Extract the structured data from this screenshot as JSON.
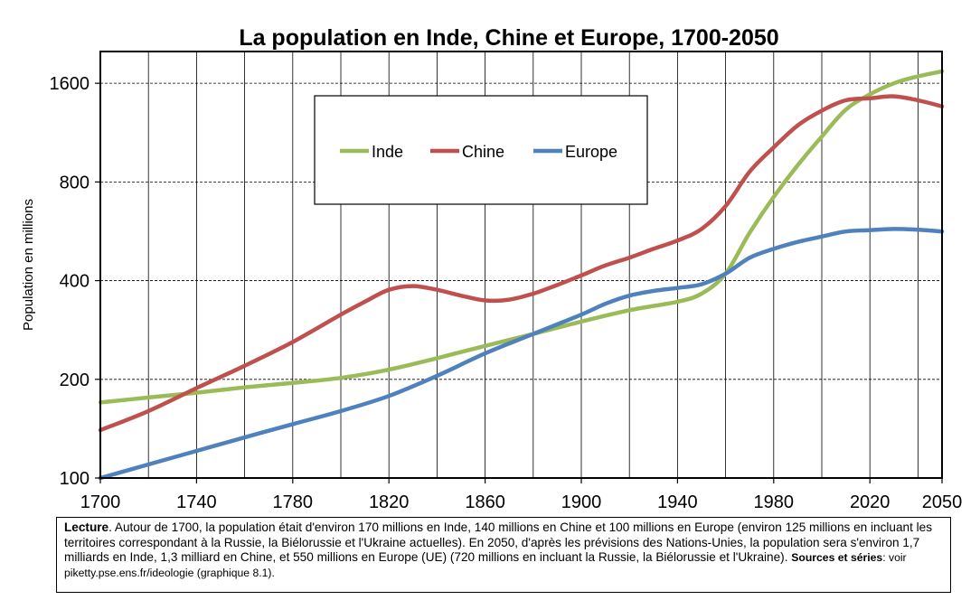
{
  "chart_data": {
    "type": "line",
    "title": "La population en Inde, Chine et Europe, 1700-2050",
    "ylabel": "Population en millions",
    "xlabel": "",
    "xlim": [
      1700,
      2050
    ],
    "ylim": [
      100,
      2000
    ],
    "yscale": "log",
    "xticks": [
      "1700",
      "1740",
      "1780",
      "1820",
      "1860",
      "1900",
      "1940",
      "1980",
      "2020",
      "2050"
    ],
    "yticks": [
      "100",
      "200",
      "400",
      "800",
      "1600"
    ],
    "grid": true,
    "legend": "top-center",
    "series": [
      {
        "name": "Inde",
        "color": "#9bbb59",
        "x": [
          1700,
          1720,
          1740,
          1760,
          1780,
          1800,
          1820,
          1840,
          1860,
          1880,
          1900,
          1920,
          1940,
          1950,
          1960,
          1970,
          1980,
          1990,
          2000,
          2010,
          2020,
          2030,
          2040,
          2050
        ],
        "y": [
          170,
          176,
          182,
          189,
          195,
          202,
          214,
          232,
          253,
          275,
          300,
          325,
          345,
          365,
          420,
          560,
          720,
          900,
          1100,
          1330,
          1480,
          1600,
          1680,
          1740
        ]
      },
      {
        "name": "Chine",
        "color": "#c0504d",
        "x": [
          1700,
          1720,
          1740,
          1760,
          1780,
          1800,
          1810,
          1820,
          1830,
          1840,
          1850,
          1860,
          1870,
          1880,
          1890,
          1900,
          1910,
          1920,
          1930,
          1940,
          1950,
          1960,
          1970,
          1980,
          1990,
          2000,
          2010,
          2020,
          2030,
          2040,
          2050
        ],
        "y": [
          140,
          160,
          188,
          220,
          260,
          315,
          345,
          375,
          385,
          375,
          360,
          348,
          350,
          365,
          388,
          415,
          445,
          470,
          500,
          530,
          575,
          675,
          860,
          1020,
          1190,
          1320,
          1420,
          1440,
          1460,
          1420,
          1360
        ]
      },
      {
        "name": "Europe",
        "color": "#4f81bd",
        "x": [
          1700,
          1720,
          1740,
          1760,
          1780,
          1800,
          1820,
          1840,
          1860,
          1880,
          1900,
          1910,
          1920,
          1930,
          1940,
          1950,
          1960,
          1970,
          1980,
          1990,
          2000,
          2010,
          2020,
          2030,
          2040,
          2050
        ],
        "y": [
          100,
          110,
          121,
          133,
          146,
          160,
          178,
          205,
          240,
          275,
          315,
          340,
          360,
          372,
          380,
          390,
          420,
          470,
          500,
          525,
          545,
          565,
          570,
          575,
          572,
          565
        ]
      }
    ]
  },
  "note": {
    "lead": "Lecture",
    "text": ". Autour de 1700, la population était d'environ 170 millions en Inde, 140 millions en Chine et 100 millions en Europe (environ 125 millions en incluant les territoires correspondant à la Russie, la Biélorussie et l'Ukraine actuelles). En 2050, d'après les prévisions des Nations-Unies, la population sera s'environ 1,7 milliards en Inde, 1,3 milliard en Chine, et 550 millions en Europe (UE) (720 millions en incluant la Russie, la Biélorussie et l'Ukraine).",
    "sources_label": "Sources et séries",
    "sources_text": ": voir piketty.pse.ens.fr/ideologie (graphique 8.1)."
  }
}
